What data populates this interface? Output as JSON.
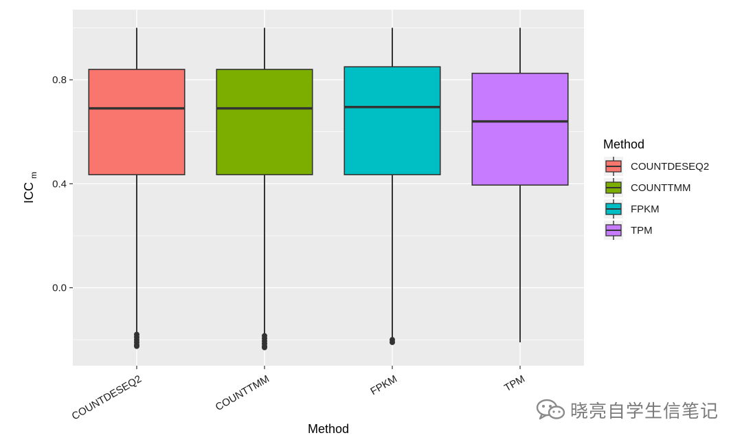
{
  "chart_data": {
    "type": "boxplot",
    "xlabel": "Method",
    "ylabel": "ICC",
    "ylabel_subscript": "m",
    "ylim": [
      -0.3,
      1.07
    ],
    "yticks": [
      0.0,
      0.4,
      0.8
    ],
    "ytick_labels": [
      "0.0",
      "0.4",
      "0.8"
    ],
    "grid": true,
    "legend": {
      "title": "Method",
      "position": "right"
    },
    "categories": [
      "COUNTDESEQ2",
      "COUNTTMM",
      "FPKM",
      "TPM"
    ],
    "colors": [
      "#F8766D",
      "#7CAE00",
      "#00BFC4",
      "#C77CFF"
    ],
    "boxes": [
      {
        "name": "COUNTDESEQ2",
        "whisker_low": -0.18,
        "q1": 0.435,
        "median": 0.69,
        "q3": 0.84,
        "whisker_high": 1.0,
        "outliers": [
          -0.18,
          -0.19,
          -0.2,
          -0.21,
          -0.22,
          -0.225
        ]
      },
      {
        "name": "COUNTTMM",
        "whisker_low": -0.18,
        "q1": 0.435,
        "median": 0.69,
        "q3": 0.84,
        "whisker_high": 1.0,
        "outliers": [
          -0.185,
          -0.195,
          -0.205,
          -0.215,
          -0.225,
          -0.23
        ]
      },
      {
        "name": "FPKM",
        "whisker_low": -0.195,
        "q1": 0.435,
        "median": 0.695,
        "q3": 0.85,
        "whisker_high": 1.0,
        "outliers": [
          -0.2,
          -0.21
        ]
      },
      {
        "name": "TPM",
        "whisker_low": -0.21,
        "q1": 0.395,
        "median": 0.64,
        "q3": 0.825,
        "whisker_high": 1.0,
        "outliers": []
      }
    ]
  },
  "watermark": {
    "text": "晓亮自学生信笔记",
    "icon": "wechat-icon"
  }
}
